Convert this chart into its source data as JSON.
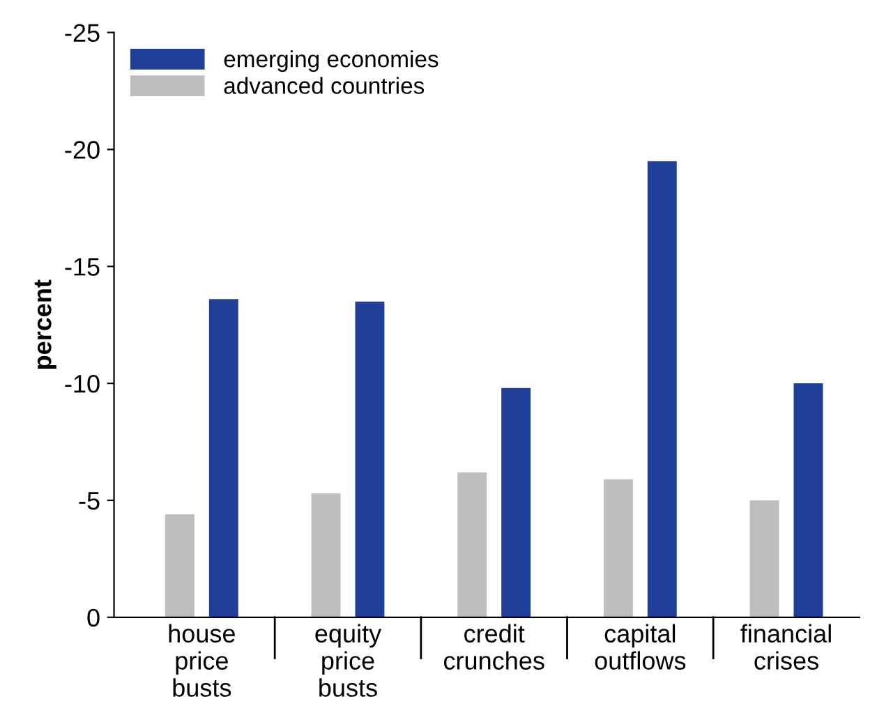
{
  "chart_data": {
    "type": "bar",
    "ylabel": "percent",
    "categories": [
      "house\nprice\nbusts",
      "equity\nprice\nbusts",
      "credit\ncrunches",
      "capital\noutflows",
      "financial\ncrises"
    ],
    "series": [
      {
        "name": "advanced countries",
        "color": "#bebebe",
        "values": [
          -4.4,
          -5.3,
          -6.2,
          -5.9,
          -5.0
        ]
      },
      {
        "name": "emerging economies",
        "color": "#1f3f99",
        "values": [
          -13.6,
          -13.5,
          -9.8,
          -19.5,
          -10.0
        ]
      }
    ],
    "ylim": [
      0,
      -25
    ],
    "yticks": [
      0,
      -5,
      -10,
      -15,
      -20,
      -25
    ],
    "grid": false,
    "legend": "top left"
  }
}
